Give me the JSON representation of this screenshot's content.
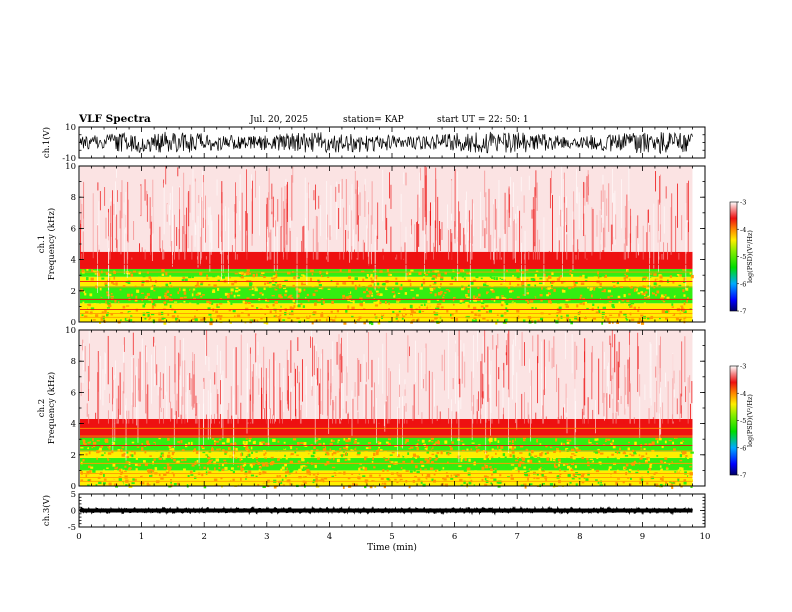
{
  "header": {
    "title": "VLF Spectra",
    "date": "Jul. 20, 2025",
    "station": "station= KAP",
    "start": "start UT =  22: 50: 1"
  },
  "chart_data": [
    {
      "type": "line",
      "id": "ch1-waveform",
      "ylabel": "ch.1(V)",
      "ylim": [
        -10,
        10
      ],
      "yticks": [
        "10",
        "-10"
      ],
      "xlim": [
        0,
        10
      ],
      "data_end_min": 9.8,
      "amplitude_V": [
        -7,
        7
      ],
      "description": "noisy waveform, roughly ±7 V"
    },
    {
      "type": "heatmap",
      "id": "ch1-spectrogram",
      "ylabel": "ch.1\nFrequency (kHz)",
      "ylim": [
        0,
        10
      ],
      "yticks": [
        "0",
        "2",
        "4",
        "6",
        "8",
        "10"
      ],
      "xlim": [
        0,
        10
      ],
      "data_end_min": 9.8,
      "bands_kHz": [
        {
          "from": 0,
          "to": 1.2,
          "level": "yellow"
        },
        {
          "from": 1.2,
          "to": 2.3,
          "level": "green"
        },
        {
          "from": 2.3,
          "to": 2.9,
          "level": "yellow"
        },
        {
          "from": 2.9,
          "to": 3.4,
          "level": "green"
        },
        {
          "from": 3.4,
          "to": 4.5,
          "level": "red"
        },
        {
          "from": 4.5,
          "to": 10,
          "level": "pale-red"
        }
      ],
      "colorbar": {
        "label": "log(PSD)(V²/Hz)",
        "range": [
          -7,
          -3
        ],
        "ticks": [
          "-3",
          "-4",
          "-5",
          "-6",
          "-7"
        ]
      }
    },
    {
      "type": "heatmap",
      "id": "ch2-spectrogram",
      "ylabel": "ch.2\nFrequency (kHz)",
      "ylim": [
        0,
        10
      ],
      "yticks": [
        "0",
        "2",
        "4",
        "6",
        "8",
        "10"
      ],
      "xlim": [
        0,
        10
      ],
      "data_end_min": 9.8,
      "bands_kHz": [
        {
          "from": 0,
          "to": 1.0,
          "level": "yellow"
        },
        {
          "from": 1.0,
          "to": 1.8,
          "level": "green"
        },
        {
          "from": 1.8,
          "to": 2.2,
          "level": "yellow"
        },
        {
          "from": 2.2,
          "to": 3.1,
          "level": "green"
        },
        {
          "from": 3.1,
          "to": 4.3,
          "level": "red"
        },
        {
          "from": 4.3,
          "to": 10,
          "level": "pale-red"
        }
      ],
      "colorbar": {
        "label": "log(PSD)(V²/Hz)",
        "range": [
          -7,
          -3
        ],
        "ticks": [
          "-3",
          "-4",
          "-5",
          "-6",
          "-7"
        ]
      }
    },
    {
      "type": "line",
      "id": "ch3-waveform",
      "ylabel": "ch.3(V)",
      "ylim": [
        -5,
        5
      ],
      "yticks": [
        "5",
        "0",
        "-5"
      ],
      "xlim": [
        0,
        10
      ],
      "data_end_min": 9.8,
      "amplitude_V": [
        -1,
        1
      ],
      "xlabel": "Time (min)",
      "xticks": [
        "0",
        "1",
        "2",
        "3",
        "4",
        "5",
        "6",
        "7",
        "8",
        "9",
        "10"
      ]
    }
  ],
  "colors": {
    "pale": "#fbe3e3",
    "light_red": "#f58a8a",
    "red": "#ee1111",
    "orange": "#ff9a00",
    "yellow": "#ffee00",
    "green": "#33ee11",
    "axis": "#000000"
  }
}
